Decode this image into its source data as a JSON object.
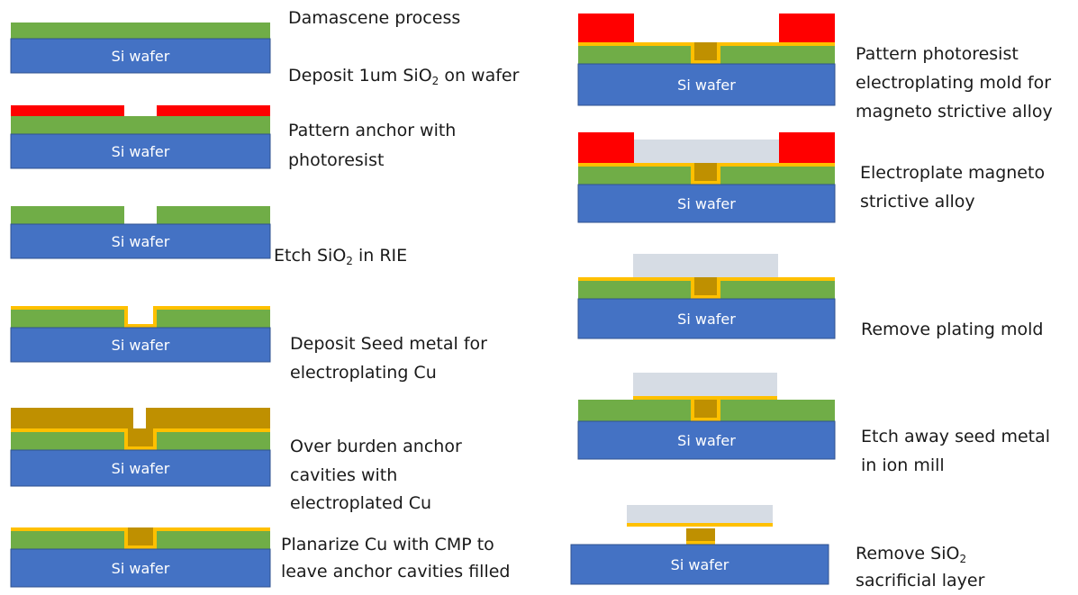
{
  "diagram": {
    "wafer_label": "Si wafer",
    "colors": {
      "silicon": "#4472c4",
      "oxide": "#70ad47",
      "photoresist": "#ff0000",
      "seed_metal": "#ffc000",
      "copper": "#bf9000",
      "magnetostrictive_alloy": "#d6dce4",
      "outline": "#2f528f"
    },
    "steps": [
      {
        "title": "Damascene process",
        "text": "Deposit 1um SiO",
        "sub": "2",
        "text_after": " on wafer"
      },
      {
        "text": "Pattern anchor with",
        "text2": "photoresist"
      },
      {
        "text": "Etch SiO",
        "sub": "2",
        "text_after": " in RIE"
      },
      {
        "text": "Deposit Seed metal for",
        "text2": "electroplating Cu"
      },
      {
        "text": "Over burden anchor",
        "text2": "cavities with",
        "text3": "electroplated Cu"
      },
      {
        "text": "Planarize Cu with CMP to",
        "text2": "leave anchor cavities filled"
      },
      {
        "text": "Pattern photoresist",
        "text2": "electroplating mold for",
        "text3": "magneto strictive alloy"
      },
      {
        "text": "Electroplate magneto",
        "text2": "strictive alloy"
      },
      {
        "text": "Remove plating mold"
      },
      {
        "text": "Etch away seed metal",
        "text2": "in ion mill"
      },
      {
        "text": "Remove SiO",
        "sub": "2",
        "text2": "sacrificial layer"
      }
    ]
  }
}
